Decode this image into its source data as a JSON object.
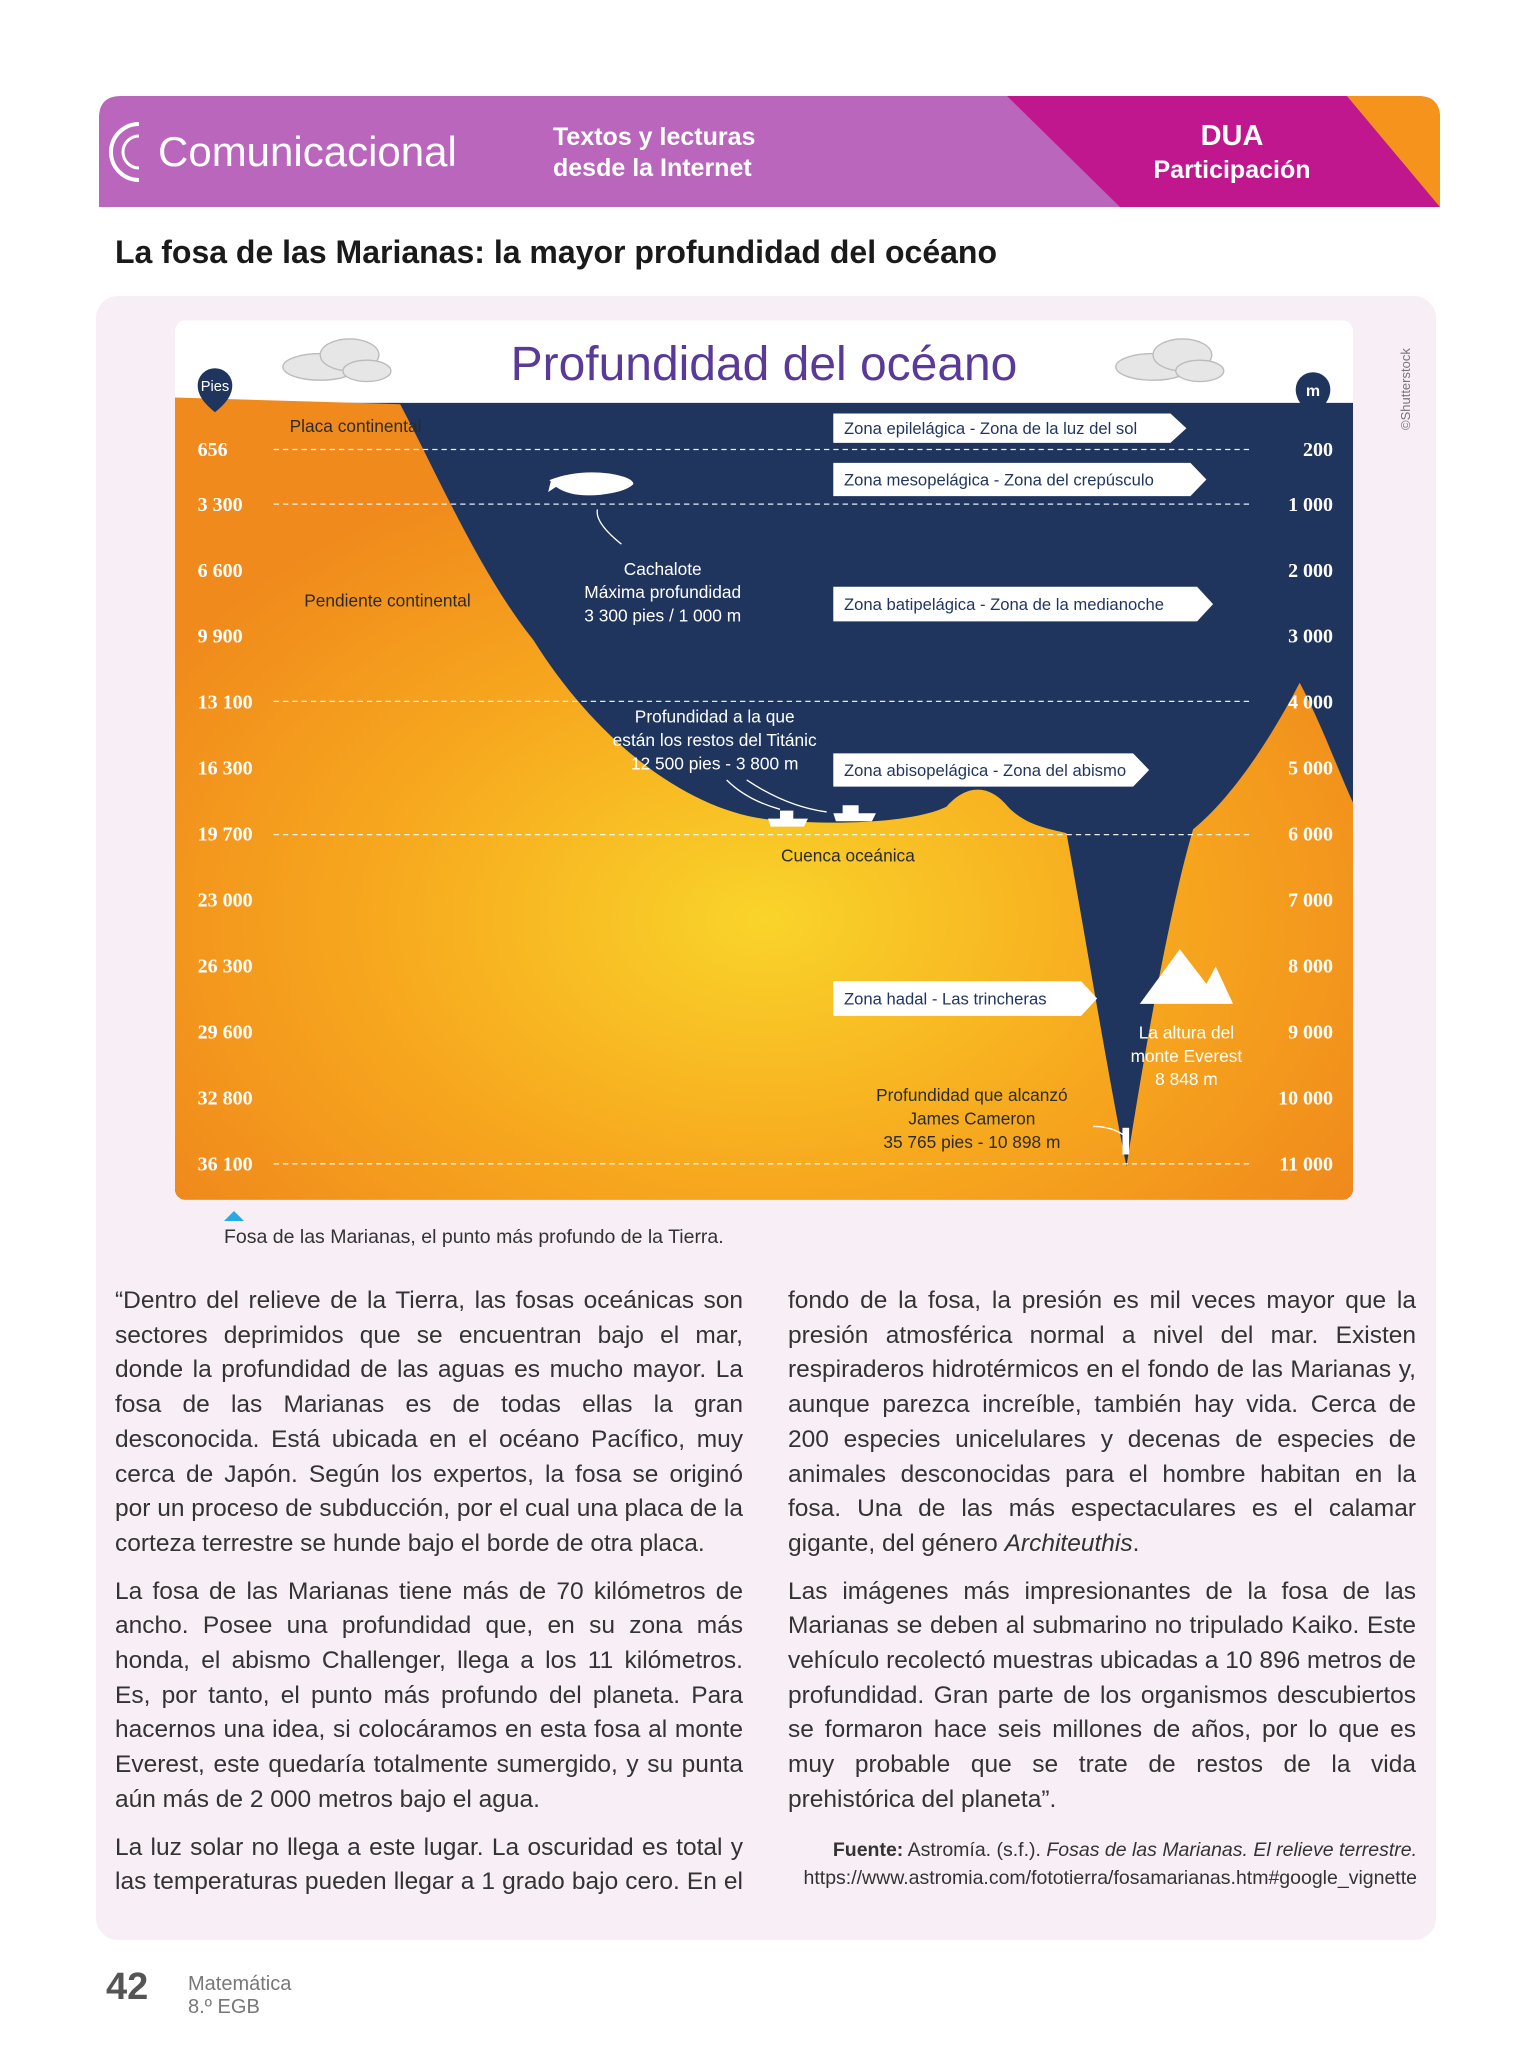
{
  "header": {
    "brand": "Comunicacional",
    "section": [
      "Textos y lecturas",
      "desde la Internet"
    ],
    "dua": "DUA",
    "dua_sub": "Participación"
  },
  "title": "La fosa de las Marianas: la mayor profundidad del océano",
  "infographic": {
    "title": "Profundidad del océano",
    "left_unit": "Pies",
    "right_unit": "m",
    "left_ticks": [
      "656",
      "3 300",
      "6 600",
      "9 900",
      "13 100",
      "16 300",
      "19 700",
      "23 000",
      "26 300",
      "29 600",
      "32 800",
      "36 100"
    ],
    "right_ticks": [
      "200",
      "1 000",
      "2 000",
      "3 000",
      "4 000",
      "5 000",
      "6 000",
      "7 000",
      "8 000",
      "9 000",
      "10 000",
      "11 000"
    ],
    "zones": [
      "Zona epilelágica - Zona de la luz del sol",
      "Zona mesopelágica - Zona del crepúsculo",
      "Zona batipelágica - Zona de la medianoche",
      "Zona abisopelágica - Zona del abismo",
      "Zona hadal - Las trincheras"
    ],
    "plate": "Placa continental",
    "slope": "Pendiente continental",
    "basin": "Cuenca oceánica",
    "whale": [
      "Cachalote",
      "Máxima profundidad",
      "3 300 pies / 1 000 m"
    ],
    "titanic": [
      "Profundidad a la que",
      "están los restos del Titánic",
      "12 500 pies - 3 800 m"
    ],
    "everest": [
      "La altura del",
      "monte Everest",
      "8 848 m"
    ],
    "cameron": [
      "Profundidad que alcanzó",
      "James Cameron",
      "35 765 pies - 10 898 m"
    ],
    "credit": "©Shutterstock"
  },
  "caption": "Fosa de las Marianas, el punto más profundo de la Tierra.",
  "left_column": [
    "“Dentro del relieve de la Tierra, las fosas oceánicas son sectores deprimidos que se encuentran bajo el mar, donde la profundidad de las aguas es mucho mayor. La fosa de las Marianas es de todas ellas la gran desconocida. Está ubicada en el océano Pacífico, muy cerca de Japón. Según los expertos, la fosa se originó por un proceso de subducción, por el cual una placa de la corteza terrestre se hunde bajo el borde de otra placa.",
    "La fosa de las Marianas tiene más de 70 kilómetros de ancho. Posee una profundidad que, en su zona más honda, el abismo Challenger, llega a los 11 kilómetros. Es, por tanto, el punto más profundo del planeta. Para hacernos una idea, si colocáramos en esta fosa al monte Everest, este quedaría totalmente sumergido, y su punta aún más de 2 000 metros bajo el agua.",
    "La luz solar no llega a este lugar. La oscuridad es total y las temperaturas pueden llegar a 1 grado bajo cero. En el"
  ],
  "right_column": [
    [
      "fondo de la fosa, la presión es mil veces mayor que la presión atmosférica normal a nivel del mar. Existen respiraderos hidrotérmicos en el fondo de las Marianas y, aunque parezca increíble, también hay vida. Cerca de 200 especies unicelulares y decenas de especies de animales desconocidas para el hombre habitan en la fosa. Una de las más espectaculares es el calamar gigante, del género ",
      "Architeuthis",
      "."
    ],
    [
      "Las imágenes más impresionantes de la fosa de las Marianas se deben al submarino no tripulado Kaiko. Este vehículo recolectó muestras ubicadas a 10 896 metros de profundidad. Gran parte de los organismos descubiertos se formaron hace seis millones de años, por lo que es muy probable que se trate de restos de la vida prehistórica del planeta”."
    ]
  ],
  "source": {
    "label": "Fuente:",
    "author": "Astromía. (s.f.).",
    "work": "Fosas de las Marianas. El relieve terrestre.",
    "url": "https://www.astromia.com/fototierra/fosamarianas.htm#google_vignette"
  },
  "footer": {
    "page": "42",
    "subject": "Matemática",
    "grade": "8.º EGB"
  }
}
